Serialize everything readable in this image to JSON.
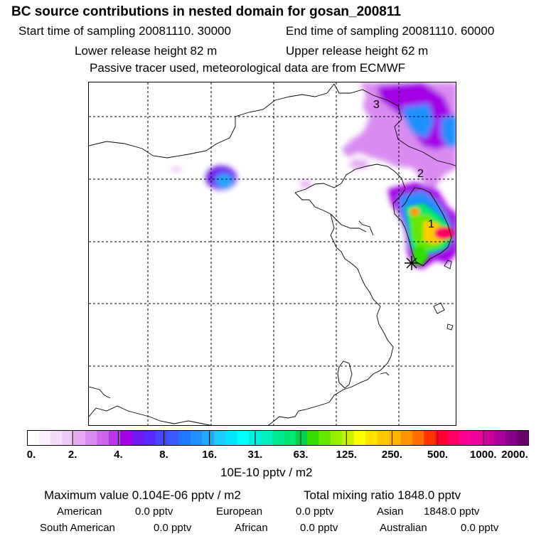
{
  "header": {
    "title": "BC  source contributions in nested domain for gosan_200811",
    "start_label": "Start time of sampling 20081110. 30000",
    "end_label": "End time of sampling 20081110. 60000",
    "lower_label": "Lower release height   82 m",
    "upper_label": "Upper release height   62 m",
    "note": "Passive tracer used, meteorological data are from ECMWF"
  },
  "map": {
    "labels": [
      "1",
      "2",
      "3"
    ]
  },
  "colorbar": {
    "ticks": [
      "0.",
      "2.",
      "4.",
      "8.",
      "16.",
      "31.",
      "63.",
      "125.",
      "250.",
      "500.",
      "1000.",
      "2000."
    ],
    "unit": "10E-10 pptv / m2",
    "colors": [
      "#ffffff",
      "#fbeefe",
      "#f5dcfb",
      "#f0c8f7",
      "#e6a8f4",
      "#d98cf0",
      "#cc66ee",
      "#bb33ee",
      "#a300e6",
      "#6f1aee",
      "#5a28ff",
      "#4646ff",
      "#3c58ff",
      "#1e78ff",
      "#1e90ff",
      "#1ea8ff",
      "#1ecbff",
      "#00e6ff",
      "#00ffff",
      "#00f0e0",
      "#00f0c0",
      "#00e890",
      "#00e870",
      "#00d24c",
      "#33dd00",
      "#66e600",
      "#99ee00",
      "#c8f000",
      "#ffff00",
      "#ffe100",
      "#ffc800",
      "#ffb400",
      "#ff9600",
      "#ff6e00",
      "#ff3200",
      "#ff0032",
      "#ff0064",
      "#ff0096",
      "#ee0099",
      "#cc0099",
      "#aa0099",
      "#880088",
      "#660066"
    ]
  },
  "footer": {
    "max_label": "Maximum value  0.104E-06 pptv / m2",
    "total_label": "Total mixing ratio     1848.0 pptv",
    "row1": [
      {
        "name": "American",
        "value": "0.0 pptv"
      },
      {
        "name": "European",
        "value": "0.0 pptv"
      },
      {
        "name": "Asian",
        "value": "1848.0 pptv"
      }
    ],
    "row2": [
      {
        "name": "South American",
        "value": "0.0 pptv"
      },
      {
        "name": "African",
        "value": "0.0 pptv"
      },
      {
        "name": "Australian",
        "value": "0.0 pptv"
      }
    ]
  }
}
